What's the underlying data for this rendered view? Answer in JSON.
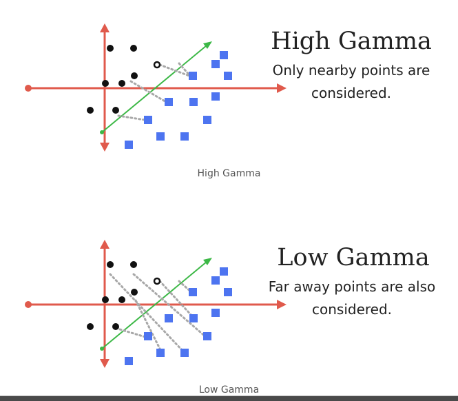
{
  "colors": {
    "axis": "#e05a4c",
    "arrow": "#3cb846",
    "square": "#4d74f0",
    "dot": "#111111",
    "dotted": "#a8a8a8"
  },
  "panels": [
    {
      "title": "High Gamma",
      "desc_line1": "Only nearby points are",
      "desc_line2": "considered.",
      "caption": "High Gamma"
    },
    {
      "title": "Low Gamma",
      "desc_line1": "Far away points are also",
      "desc_line2": "considered.",
      "caption": "Low Gamma"
    }
  ]
}
